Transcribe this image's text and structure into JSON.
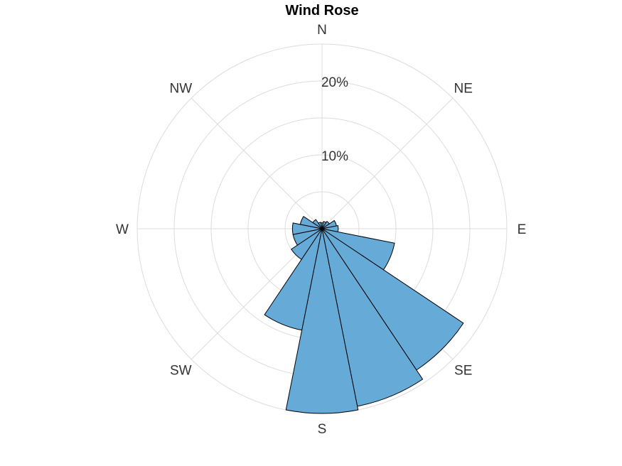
{
  "chart_data": {
    "type": "wind-rose",
    "title": "Wind Rose",
    "direction_labels": [
      "N",
      "NE",
      "E",
      "SE",
      "S",
      "SW",
      "W",
      "NW"
    ],
    "direction_label_angles_deg": [
      0,
      45,
      90,
      135,
      180,
      225,
      270,
      315
    ],
    "ring_labels": [
      "10%",
      "20%"
    ],
    "ring_values": [
      10,
      20
    ],
    "r_max": 25,
    "grid_rings": [
      5,
      10,
      15,
      20,
      25
    ],
    "grid": true,
    "bin_width_deg": 22.5,
    "bin_centers_deg": [
      0,
      22.5,
      45,
      67.5,
      90,
      112.5,
      135,
      157.5,
      180,
      202.5,
      225,
      247.5,
      270,
      292.5,
      315,
      337.5
    ],
    "values": [
      0.8,
      1.0,
      1.2,
      2.0,
      2.2,
      10.0,
      23.0,
      24.5,
      25.0,
      14.0,
      5.0,
      4.0,
      4.0,
      3.0,
      1.5,
      0.9
    ],
    "fill_color": "#66aad8",
    "edge_color": "#000000",
    "legend": "none"
  }
}
